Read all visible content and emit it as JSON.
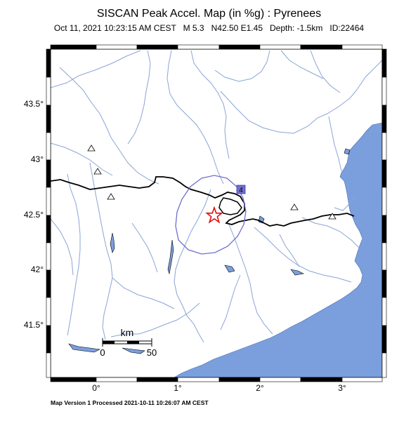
{
  "title": "SISCAN Peak Accel. Map (in %g) : Pyrenees",
  "subtitle": "Oct 11, 2021 10:23:15 AM CEST   M 5.3   N42.50 E1.45   Depth: -1.5km   ID:22464",
  "footer": "Map Version 1 Processed 2021-10-11 10:26:07 AM CEST",
  "map": {
    "lat_ticks": [
      "43.5°",
      "43°",
      "42.5°",
      "42°",
      "41.5°"
    ],
    "lon_ticks": [
      "0°",
      "1°",
      "2°",
      "3°"
    ],
    "scale_bar": {
      "unit": "km",
      "start_label": "0",
      "end_label": "50"
    },
    "contour_label": "4",
    "epicenter": {
      "lat": 42.5,
      "lon": 1.45
    },
    "colors": {
      "sea": "#7b9fdc",
      "rivers": "#8aa4d6",
      "border": "#000000",
      "contour": "#6f6fd0",
      "epicenter": "#e01010"
    }
  }
}
